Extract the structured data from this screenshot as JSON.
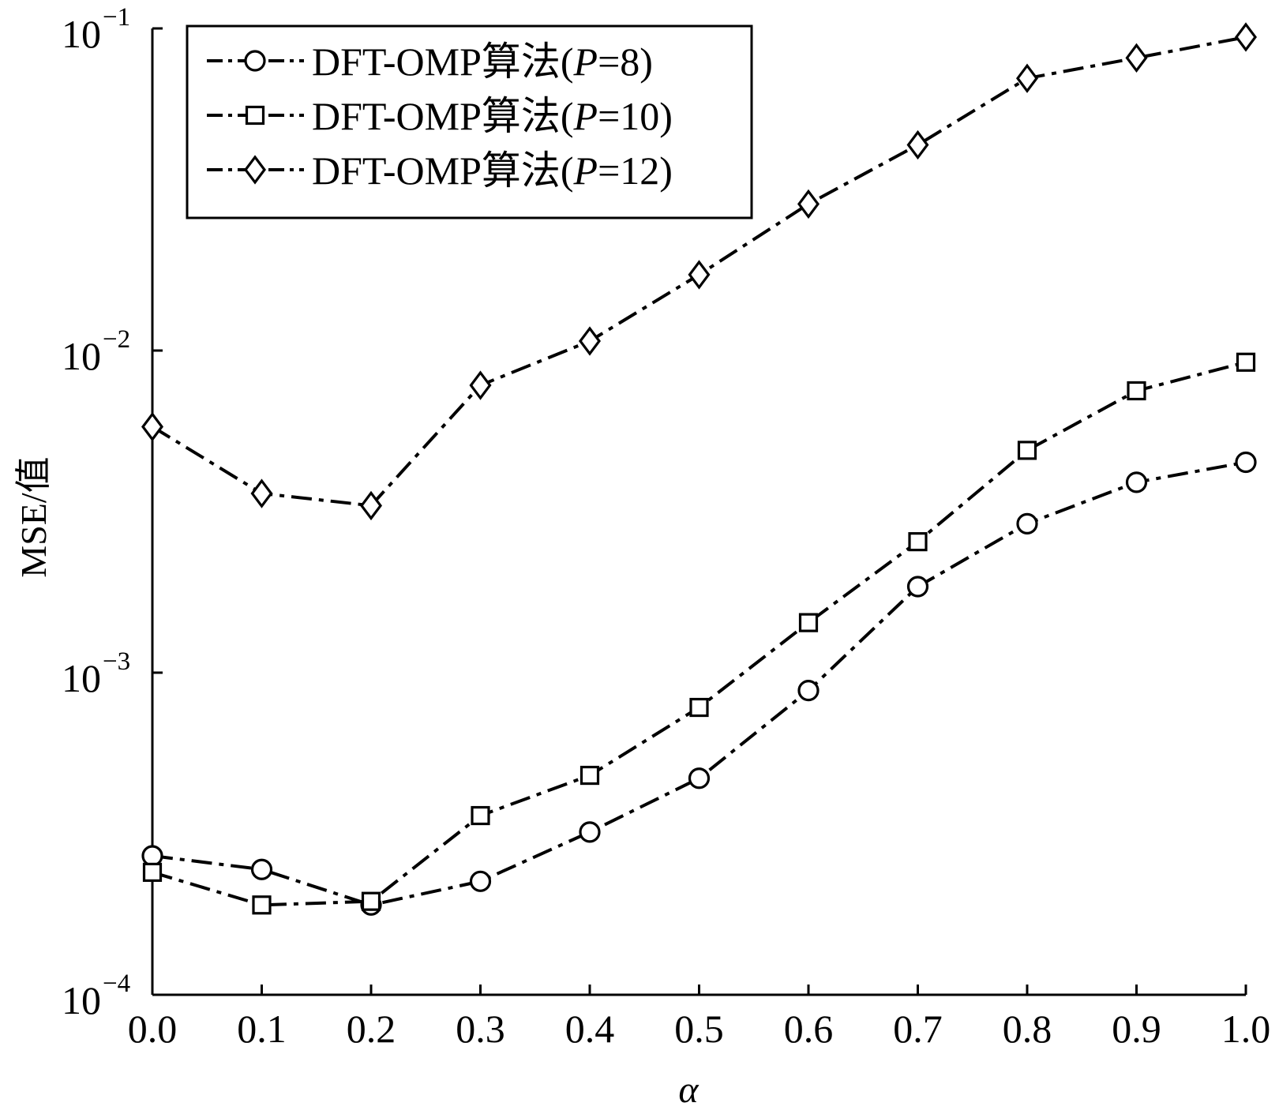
{
  "chart_data": {
    "type": "line",
    "title": "",
    "xlabel": "α",
    "ylabel": "MSE/值",
    "x": [
      0.0,
      0.1,
      0.2,
      0.3,
      0.4,
      0.5,
      0.6,
      0.7,
      0.8,
      0.9,
      1.0
    ],
    "x_ticks": [
      "0.0",
      "0.1",
      "0.2",
      "0.3",
      "0.4",
      "0.5",
      "0.6",
      "0.7",
      "0.8",
      "0.9",
      "1.0"
    ],
    "xlim": [
      0.0,
      1.0
    ],
    "ylim": [
      0.0001,
      0.1
    ],
    "y_scale": "log",
    "y_ticks": [
      {
        "value": 0.1,
        "base": "10",
        "exp": "−1"
      },
      {
        "value": 0.01,
        "base": "10",
        "exp": "−2"
      },
      {
        "value": 0.001,
        "base": "10",
        "exp": "−3"
      },
      {
        "value": 0.0001,
        "base": "10",
        "exp": "−4"
      }
    ],
    "grid": false,
    "legend_position": "top-left",
    "line_style": "dash-dot",
    "line_color": "#000000",
    "series": [
      {
        "name_prefix": "DFT-OMP算法(",
        "name_var": "P",
        "name_suffix": "=8)",
        "marker": "circle",
        "values": [
          0.00027,
          0.000245,
          0.00019,
          0.000225,
          0.00032,
          0.00047,
          0.00088,
          0.00185,
          0.0029,
          0.0039,
          0.0045
        ]
      },
      {
        "name_prefix": "DFT-OMP算法(",
        "name_var": "P",
        "name_suffix": "=10)",
        "marker": "square",
        "values": [
          0.00024,
          0.00019,
          0.000195,
          0.00036,
          0.00048,
          0.00078,
          0.00143,
          0.00255,
          0.0049,
          0.0075,
          0.0092
        ]
      },
      {
        "name_prefix": "DFT-OMP算法(",
        "name_var": "P",
        "name_suffix": "=12)",
        "marker": "diamond",
        "values": [
          0.0058,
          0.0036,
          0.0033,
          0.0078,
          0.0107,
          0.0172,
          0.0285,
          0.0435,
          0.07,
          0.081,
          0.094
        ]
      }
    ]
  }
}
